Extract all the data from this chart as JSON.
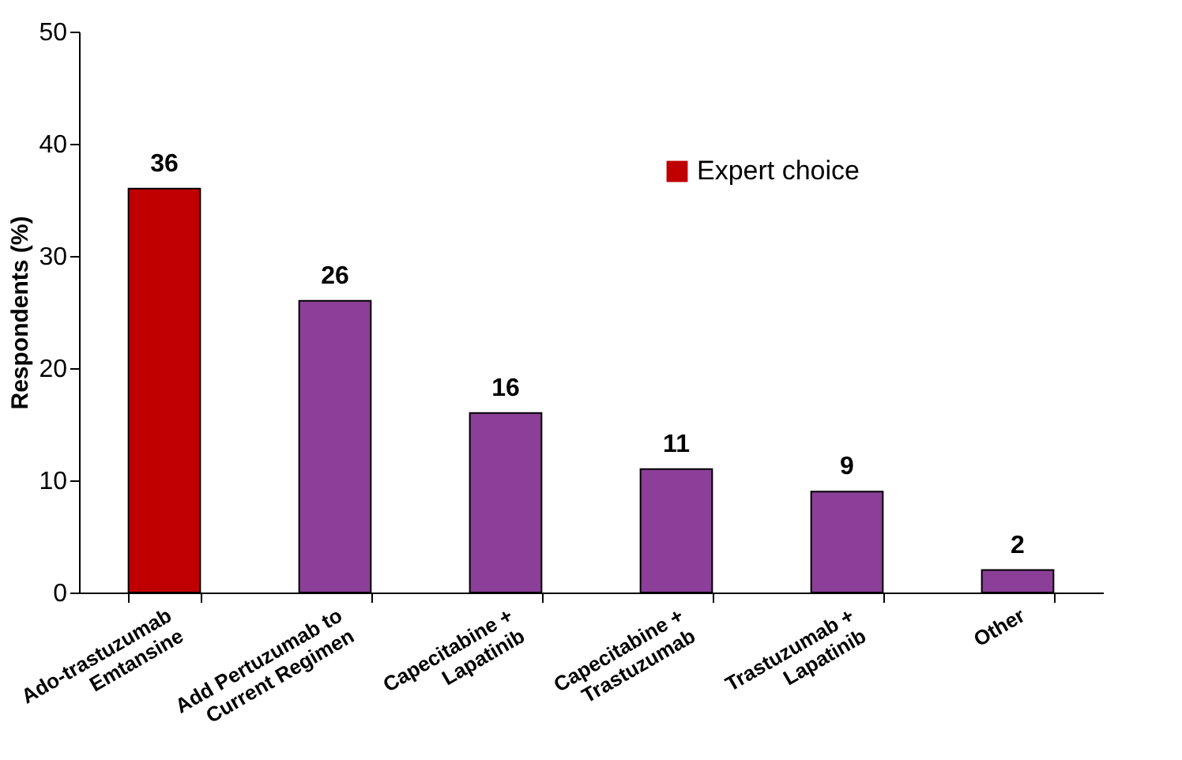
{
  "chart_data": {
    "type": "bar",
    "ylabel": "Respondents (%)",
    "categories": [
      "Ado-trastuzumab\nEmtansine",
      "Add Pertuzumab to\nCurrent Regimen",
      "Capecitabine +\nLapatinib",
      "Capecitabine +\nTrastuzumab",
      "Trastuzumab +\nLapatinib",
      "Other"
    ],
    "series": [
      {
        "name": "Expert choice",
        "color": "#c00000",
        "values": [
          36,
          null,
          null,
          null,
          null,
          null
        ]
      },
      {
        "color": "#8b3f98",
        "values": [
          null,
          26,
          16,
          11,
          9,
          2
        ]
      }
    ],
    "ylim": [
      0,
      50
    ],
    "yticks": [
      0,
      10,
      20,
      30,
      40,
      50
    ],
    "data_labels": true,
    "legend": "top right",
    "grid": false
  }
}
